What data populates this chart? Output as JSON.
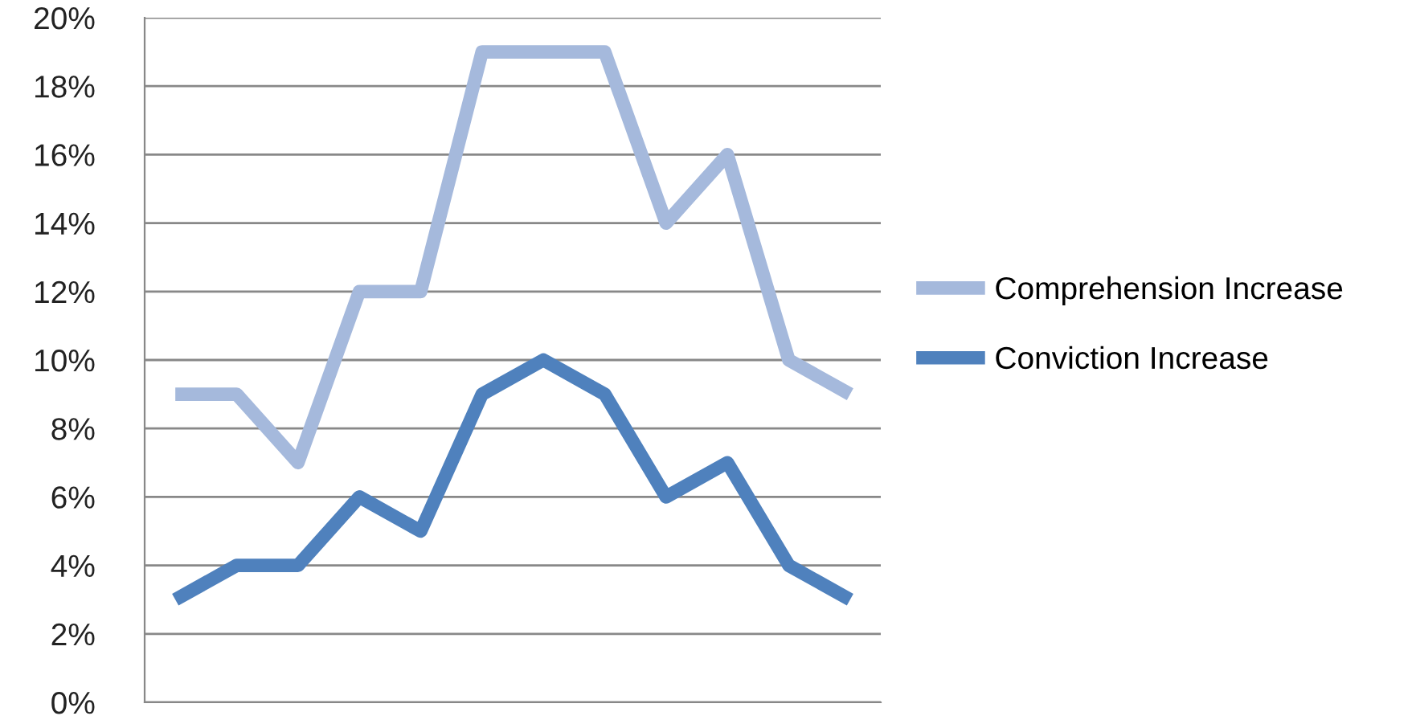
{
  "chart_data": {
    "type": "line",
    "categories": [
      null,
      null,
      null,
      null,
      null,
      null,
      null,
      null,
      null,
      null,
      null,
      null
    ],
    "series": [
      {
        "name": "Comprehension Increase",
        "color": "#a5b9dc",
        "values": [
          9,
          9,
          7,
          12,
          12,
          19,
          19,
          19,
          14,
          16,
          10,
          9
        ]
      },
      {
        "name": "Conviction Increase",
        "color": "#4f81bd",
        "values": [
          3,
          4,
          4,
          6,
          5,
          9,
          10,
          9,
          6,
          7,
          4,
          3
        ]
      }
    ],
    "ylim": [
      0,
      20
    ],
    "yticks": [
      {
        "value": 0,
        "label": "0%"
      },
      {
        "value": 2,
        "label": "2%"
      },
      {
        "value": 4,
        "label": "4%"
      },
      {
        "value": 6,
        "label": "6%"
      },
      {
        "value": 8,
        "label": "8%"
      },
      {
        "value": 10,
        "label": "10%"
      },
      {
        "value": 12,
        "label": "12%"
      },
      {
        "value": 14,
        "label": "14%"
      },
      {
        "value": 16,
        "label": "16%"
      },
      {
        "value": 18,
        "label": "18%"
      },
      {
        "value": 20,
        "label": "20%"
      }
    ],
    "grid": "y",
    "legend": "right",
    "marker": "none",
    "line_style": "solid"
  }
}
